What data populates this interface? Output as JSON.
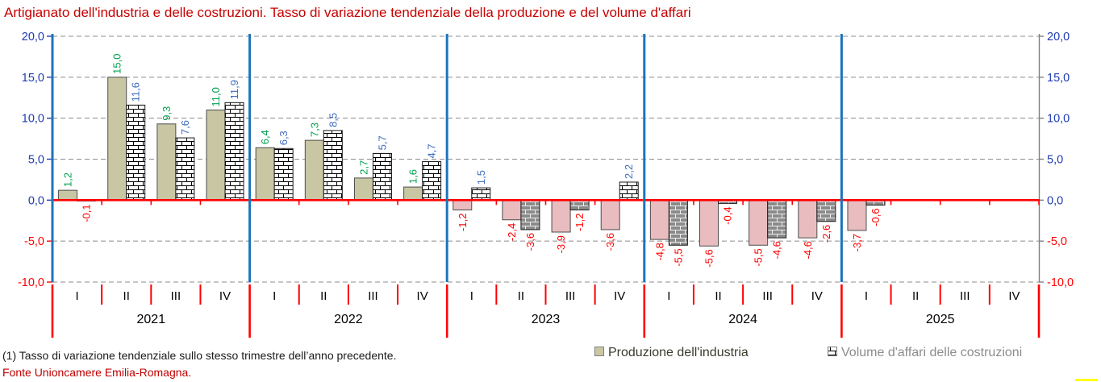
{
  "title": "Artigianato dell'industria e delle costruzioni. Tasso di variazione tendenziale della produzione e del volume d'affari",
  "footnote": "(1) Tasso di variazione tendenziale sullo stesso trimestre dell’anno precedente.",
  "source": "Fonte Unioncamere Emilia-Romagna.",
  "legend": {
    "items": [
      {
        "label": "Produzione dell'industria",
        "marker": "solid-khaki-square"
      },
      {
        "label": "Volume d'affari delle costruzioni",
        "marker": "brick-pattern-square"
      }
    ],
    "position": "bottom"
  },
  "colors": {
    "title_red": "#c80000",
    "zero_line_red": "#ff0000",
    "year_separator_blue": "#1c74bc",
    "gridline_gray": "#8c8c8c",
    "right_axis_gray": "#808080",
    "production_positive_fill": "#c9c6a3",
    "production_negative_fill": "#e9bcc0",
    "construction_positive_brick": "#ffffff",
    "construction_negative_brick": "#8a8a8a",
    "label_positive_production": "#00a14f",
    "label_positive_construction": "#3c6cc0",
    "label_negative": "#ff0000",
    "axis_label_positive": "#1f3bb3",
    "axis_label_negative": "#ff0000"
  },
  "chart_data": {
    "type": "bar",
    "title": "Artigianato dell'industria e delle costruzioni. Tasso di variazione tendenziale della produzione e del volume d'affari",
    "years": [
      "2021",
      "2022",
      "2023",
      "2024",
      "2025"
    ],
    "quarters": [
      "I",
      "II",
      "III",
      "IV"
    ],
    "y_axis": {
      "min": -10,
      "max": 20,
      "step": 5,
      "ticks": [
        20,
        15,
        10,
        5,
        0,
        -5,
        -10
      ],
      "tick_labels": [
        "20,0",
        "15,0",
        "10,0",
        "5,0",
        "0,0",
        "-5,0",
        "-10,0"
      ]
    },
    "grid": true,
    "legend_position": "bottom",
    "series": [
      {
        "name": "Produzione dell'industria",
        "values": [
          1.2,
          15.0,
          9.3,
          11.0,
          6.4,
          7.3,
          2.7,
          1.6,
          -1.2,
          -2.4,
          -3.9,
          -3.6,
          -4.8,
          -5.6,
          -5.5,
          -4.6,
          -3.7,
          null,
          null,
          null
        ]
      },
      {
        "name": "Volume d'affari delle costruzioni",
        "values": [
          -0.1,
          11.6,
          7.6,
          11.9,
          6.3,
          8.5,
          5.7,
          4.7,
          1.5,
          -3.6,
          -1.2,
          2.2,
          -5.5,
          -0.4,
          -4.6,
          -2.6,
          -0.6,
          null,
          null,
          null
        ]
      }
    ]
  }
}
